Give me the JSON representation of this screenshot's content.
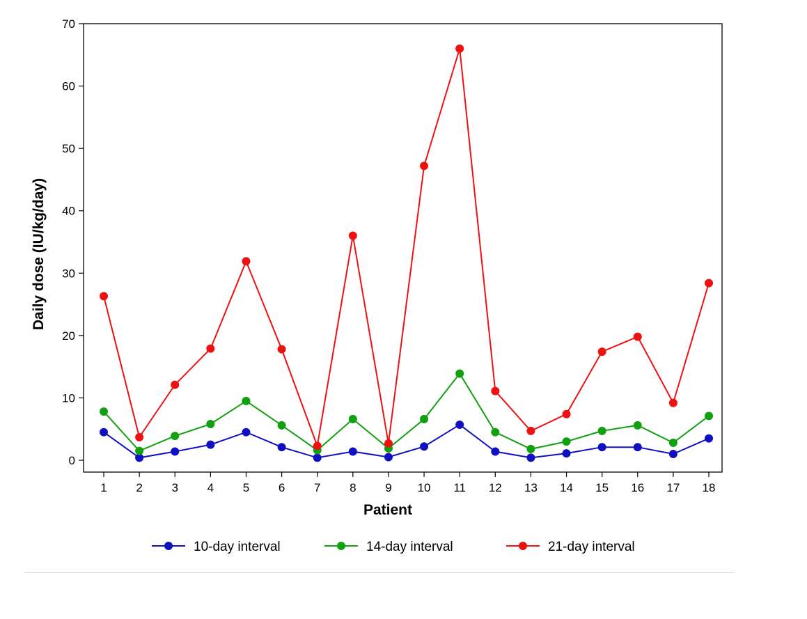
{
  "chart_data": {
    "type": "line",
    "title": "",
    "xlabel": "Patient",
    "ylabel": "Daily dose (IU/kg/day)",
    "categories": [
      "1",
      "2",
      "3",
      "4",
      "5",
      "6",
      "7",
      "8",
      "9",
      "10",
      "11",
      "12",
      "13",
      "14",
      "15",
      "16",
      "17",
      "18"
    ],
    "ylim": [
      0,
      70
    ],
    "yticks": [
      "0",
      "10",
      "20",
      "30",
      "40",
      "50",
      "60",
      "70"
    ],
    "grid": false,
    "legend_position": "bottom",
    "series": [
      {
        "name": "10-day interval",
        "color": "#1010c0",
        "values": [
          4.5,
          0.4,
          1.4,
          2.5,
          4.5,
          2.1,
          0.4,
          1.4,
          0.5,
          2.2,
          5.7,
          1.4,
          0.4,
          1.1,
          2.1,
          2.1,
          1.0,
          3.5
        ]
      },
      {
        "name": "14-day interval",
        "color": "#10a010",
        "values": [
          7.8,
          1.5,
          3.9,
          5.8,
          9.5,
          5.6,
          1.6,
          6.6,
          1.9,
          6.6,
          13.9,
          4.5,
          1.8,
          3.0,
          4.7,
          5.6,
          2.8,
          7.1
        ]
      },
      {
        "name": "21-day interval",
        "color": "#ee1111",
        "values": [
          26.3,
          3.7,
          12.1,
          17.9,
          31.9,
          17.8,
          2.3,
          36.0,
          2.7,
          47.2,
          66.0,
          11.1,
          4.7,
          7.4,
          17.4,
          19.8,
          9.2,
          28.4
        ]
      }
    ]
  }
}
